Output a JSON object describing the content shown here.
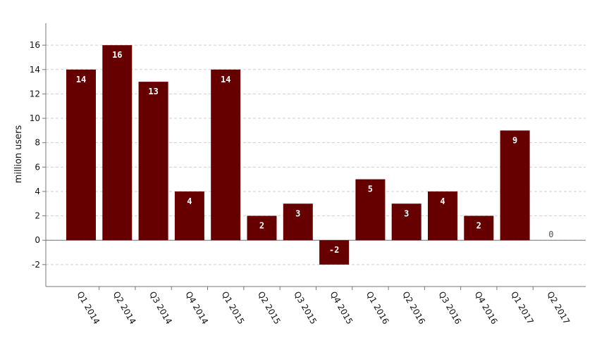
{
  "chart_data": {
    "type": "bar",
    "categories": [
      "Q1 2014",
      "Q2 2014",
      "Q3 2014",
      "Q4 2014",
      "Q1 2015",
      "Q2 2015",
      "Q3 2015",
      "Q4 2015",
      "Q1 2016",
      "Q2 2016",
      "Q3 2016",
      "Q4 2016",
      "Q1 2017",
      "Q2 2017"
    ],
    "values": [
      14,
      16,
      13,
      4,
      14,
      2,
      3,
      -2,
      5,
      3,
      4,
      2,
      9,
      0
    ],
    "data_labels": [
      "14",
      "16",
      "13",
      "4",
      "14",
      "2",
      "3",
      "-2",
      "5",
      "3",
      "4",
      "2",
      "9",
      "0"
    ],
    "title": "",
    "xlabel": "",
    "ylabel": "million users",
    "ylim": [
      -3.8,
      17.8
    ],
    "yticks": [
      -2,
      0,
      2,
      4,
      6,
      8,
      10,
      12,
      14,
      16
    ],
    "ytick_labels": [
      "-2",
      "0",
      "2",
      "4",
      "6",
      "8",
      "10",
      "12",
      "14",
      "16"
    ],
    "grid": true,
    "legend": "none",
    "colors": {
      "bar": "#660000",
      "grid": "#cfcfcf",
      "axis": "#777777"
    }
  }
}
